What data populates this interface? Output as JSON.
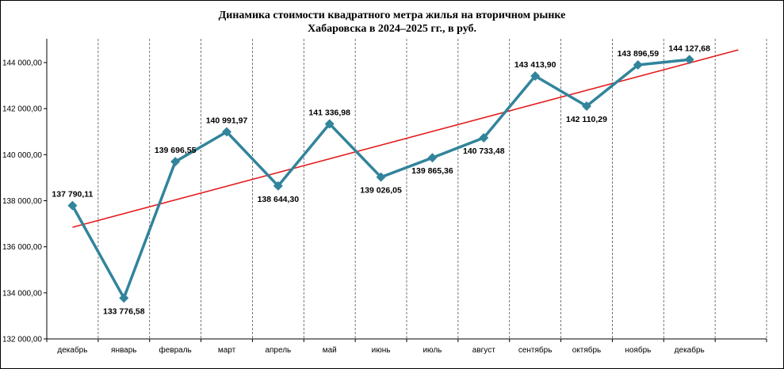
{
  "chart_data": {
    "type": "line",
    "title_line1": "Динамика стоимости квадратного метра жилья на вторичном рынке",
    "title_line2": "Хабаровска в 2024–2025 гг., в руб.",
    "categories": [
      "декабрь",
      "январь",
      "февраль",
      "март",
      "апрель",
      "май",
      "июнь",
      "июль",
      "август",
      "сентябрь",
      "октябрь",
      "ноябрь",
      "декабрь"
    ],
    "series": [
      {
        "values": [
          137790.11,
          133776.58,
          139696.55,
          140991.97,
          138644.3,
          141336.98,
          139026.05,
          139865.36,
          140733.48,
          143413.9,
          142110.29,
          143896.59,
          144127.68
        ],
        "labels": [
          "137 790,11",
          "133 776,58",
          "139 696,55",
          "140 991,97",
          "138 644,30",
          "141 336,98",
          "139 026,05",
          "139 865,36",
          "140 733,48",
          "143 413,90",
          "142 110,29",
          "143 896,59",
          "144 127,68"
        ],
        "label_positions": [
          "above",
          "below",
          "above",
          "above",
          "below",
          "above",
          "below",
          "below",
          "below",
          "above",
          "below",
          "above",
          "above"
        ],
        "color": "#31849B"
      }
    ],
    "trendline": {
      "type": "linear",
      "color": "#E31A1C"
    },
    "ylim": [
      132000,
      144000
    ],
    "yticks": [
      "132 000,00",
      "134 000,00",
      "136 000,00",
      "138 000,00",
      "140 000,00",
      "142 000,00",
      "144 000,00"
    ],
    "grid": "vertical-dashed",
    "legend": "none"
  }
}
